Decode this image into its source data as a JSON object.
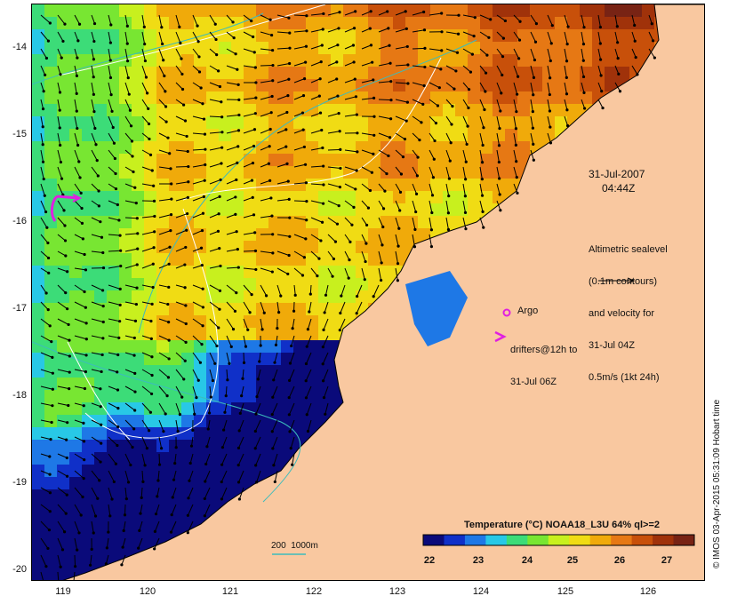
{
  "map": {
    "date": "31-Jul-2007",
    "time": "04:44Z",
    "y_ticks": [
      "-14",
      "-15",
      "-16",
      "-17",
      "-18",
      "-19",
      "-20"
    ],
    "x_ticks": [
      "119",
      "120",
      "121",
      "122",
      "123",
      "124",
      "125",
      "126"
    ],
    "lon_range": [
      118.6,
      126.7
    ],
    "lat_range": [
      -20.05,
      -13.65
    ]
  },
  "legend": {
    "altimetry_lines": [
      "Altimetric sealevel",
      "(0.1m contours)",
      "and velocity for",
      "31-Jul 04Z",
      "0.5m/s (1kt 24h)"
    ],
    "argo": "Argo",
    "drifters_lines": [
      "drifters@12h to",
      "31-Jul 06Z"
    ],
    "contour_label": "200  1000m"
  },
  "colorbar": {
    "title": "Temperature (°C) NOAA18_L3U 64% ql>=2",
    "ticks": [
      "22",
      "23",
      "24",
      "25",
      "26",
      "27"
    ],
    "colors": [
      "#0a0a7a",
      "#1030c8",
      "#1e78e6",
      "#28c8e6",
      "#3cdc78",
      "#78e632",
      "#c8f01e",
      "#f0dc14",
      "#f0aa0a",
      "#e67814",
      "#c8500a",
      "#a0320a",
      "#782314"
    ]
  },
  "credit": "© IMOS 03-Apr-2015 05:31:09 Hobart time",
  "colors": {
    "land": "#f9c8a0",
    "contour_shelf": "#3cbcbc",
    "contour_sealevel": "#ffffff",
    "argo": "#e020e0"
  }
}
